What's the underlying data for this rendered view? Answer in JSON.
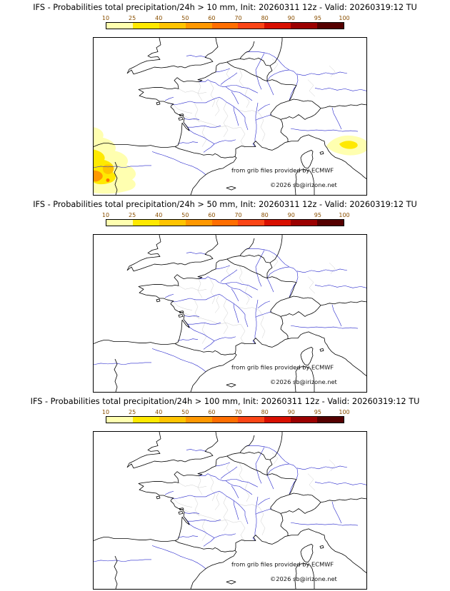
{
  "panels": [
    {
      "threshold_mm": 10,
      "title": "IFS - Probabilities total precipitation/24h > 10 mm, Init: 20260311 12z - Valid: 20260319:12 TU"
    },
    {
      "threshold_mm": 50,
      "title": "IFS - Probabilities total precipitation/24h > 50 mm, Init: 20260311 12z - Valid: 20260319:12 TU"
    },
    {
      "threshold_mm": 100,
      "title": "IFS - Probabilities total precipitation/24h > 100 mm, Init: 20260311 12z - Valid: 20260319:12 TU"
    }
  ],
  "colorbar": {
    "ticks": [
      "10",
      "25",
      "40",
      "50",
      "60",
      "70",
      "80",
      "90",
      "95",
      "100"
    ],
    "colors": [
      "#ffffb0",
      "#ffe900",
      "#ffc400",
      "#ff9800",
      "#ff6e00",
      "#fb4516",
      "#d80f00",
      "#9b0000",
      "#550000"
    ],
    "tick_color": "#8a4f00",
    "border_color": "#000000"
  },
  "map": {
    "attribution_line1": "from grib files provided by ECMWF",
    "attribution_line2": "©2026 sb@irizone.net",
    "coast_color": "#000000",
    "river_color": "#2626cc",
    "admin_color": "#c8c8c8"
  }
}
